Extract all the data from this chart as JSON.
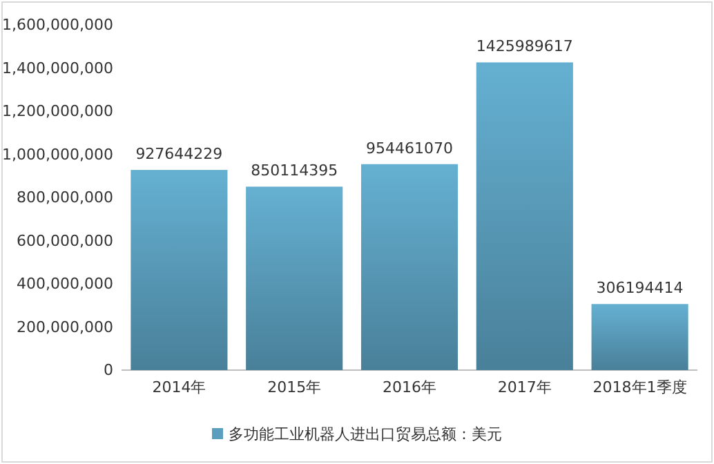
{
  "chart_data": {
    "type": "bar",
    "categories": [
      "2014年",
      "2015年",
      "2016年",
      "2017年",
      "2018年1季度"
    ],
    "series": [
      {
        "name": "多功能工业机器人进出口贸易总额：美元",
        "color": "#5b9ebd",
        "values": [
          927644229,
          850114395,
          954461070,
          1425989617,
          306194414
        ]
      }
    ],
    "ylim": [
      0,
      1600000000
    ],
    "yticks": [
      {
        "value": 0,
        "label": "0"
      },
      {
        "value": 200000000,
        "label": "200,000,000"
      },
      {
        "value": 400000000,
        "label": "400,000,000"
      },
      {
        "value": 600000000,
        "label": "600,000,000"
      },
      {
        "value": 800000000,
        "label": "800,000,000"
      },
      {
        "value": 1000000000,
        "label": "1,000,000,000"
      },
      {
        "value": 1200000000,
        "label": "1,200,000,000"
      },
      {
        "value": 1400000000,
        "label": "1,400,000,000"
      },
      {
        "value": 1600000000,
        "label": "1,600,000,000"
      }
    ],
    "data_labels": true,
    "legend": "bottom",
    "grid": false
  }
}
